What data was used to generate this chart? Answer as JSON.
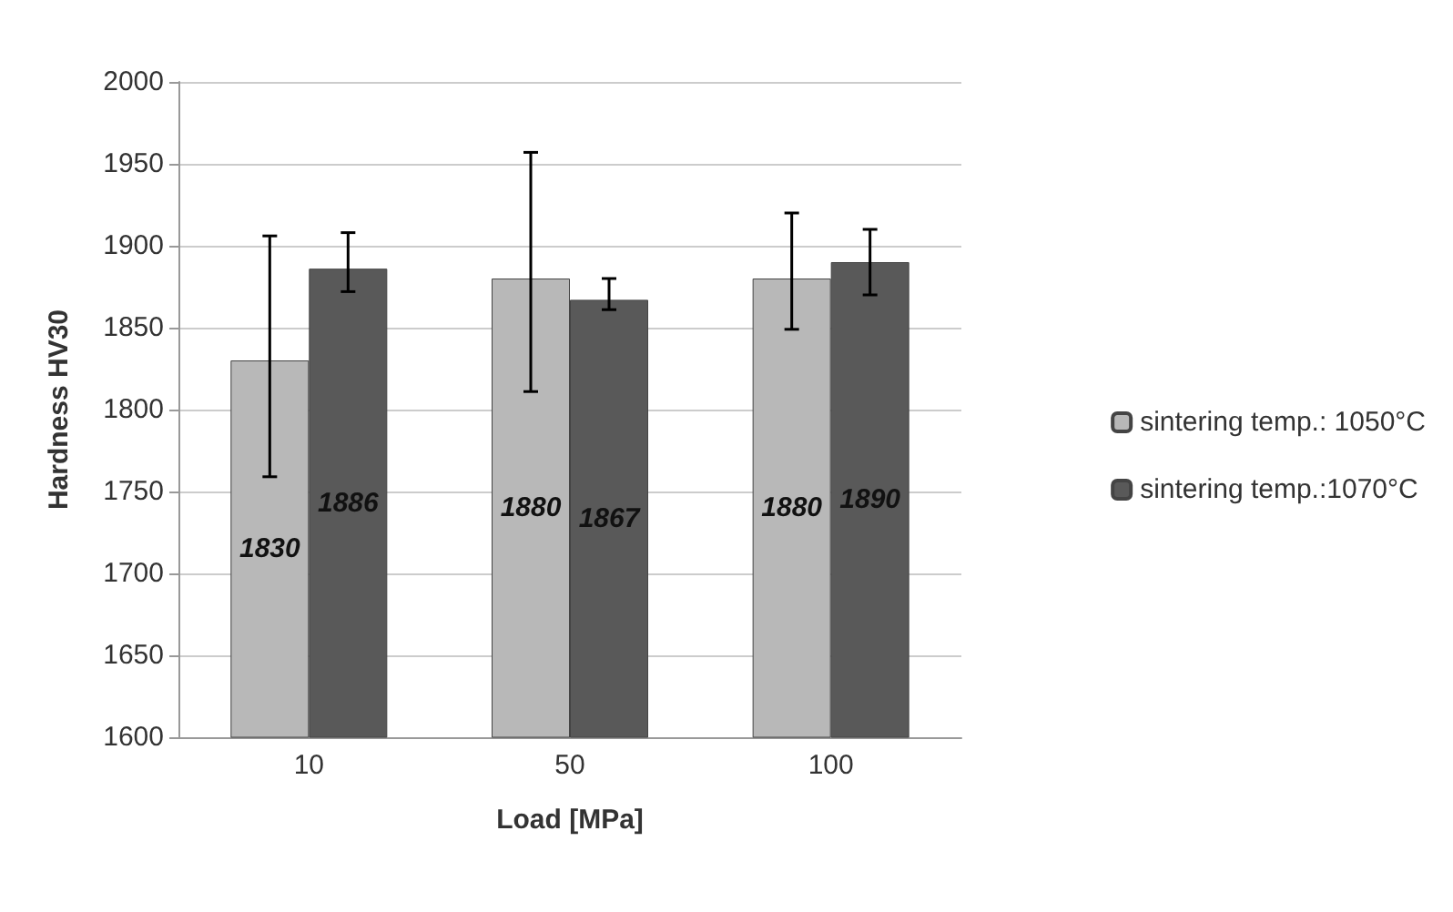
{
  "chart_data": {
    "type": "bar",
    "xlabel": "Load [MPa]",
    "ylabel": "Hardness HV30",
    "categories": [
      "10",
      "50",
      "100"
    ],
    "series": [
      {
        "name": "sintering temp.: 1050°C",
        "color": "#b8b8b8",
        "values": [
          1830,
          1880,
          1880
        ],
        "errors": [
          [
            1759,
            1906
          ],
          [
            1811,
            1957
          ],
          [
            1849,
            1920
          ]
        ]
      },
      {
        "name": "sintering temp.:1070°C",
        "color": "#595959",
        "values": [
          1886,
          1867,
          1890
        ],
        "errors": [
          [
            1872,
            1908
          ],
          [
            1861,
            1880
          ],
          [
            1870,
            1910
          ]
        ]
      }
    ],
    "ylim": [
      1600,
      2000
    ],
    "yticks": [
      1600,
      1650,
      1700,
      1750,
      1800,
      1850,
      1900,
      1950,
      2000
    ],
    "grid": "y",
    "legend": "right",
    "data_labels": true
  }
}
